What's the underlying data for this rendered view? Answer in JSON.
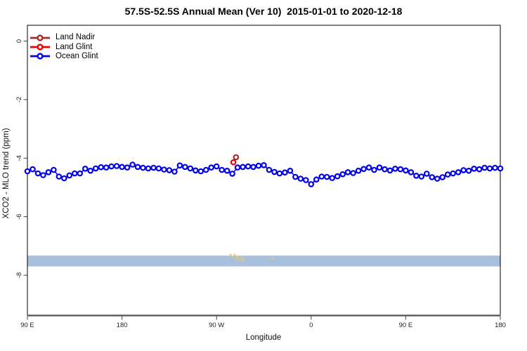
{
  "title": "57.5S-52.5S Annual Mean (Ver 10)  2015-01-01 to 2020-12-18",
  "axes": {
    "xlabel": "Longitude",
    "ylabel": "XCO2 - MLO trend (ppm)"
  },
  "legend": {
    "items": [
      {
        "label": "Land Nadir",
        "color": "#A52A2A"
      },
      {
        "label": "Land Glint",
        "color": "#EE0000"
      },
      {
        "label": "Ocean Glint",
        "color": "#0000EE"
      }
    ]
  },
  "colors": {
    "band": "#A9C0DD",
    "extra_marks": "#F2CB5E",
    "axis_line": "#595959",
    "box": "#000000",
    "tick_text": "#222222"
  },
  "chart_data": {
    "type": "line",
    "title": "57.5S-52.5S Annual Mean (Ver 10)  2015-01-01 to 2020-12-18",
    "xlabel": "Longitude",
    "ylabel": "XCO2 - MLO trend (ppm)",
    "xlim": [
      90,
      540
    ],
    "ylim": [
      -9.39,
      0.54
    ],
    "x_axis_note": "longitude axis wraps eastward: 90E, 180, 90W, 0, 90E, 180",
    "x_ticks": [
      {
        "x": 90,
        "label": "90 E"
      },
      {
        "x": 180,
        "label": "180"
      },
      {
        "x": 270,
        "label": "90 W"
      },
      {
        "x": 360,
        "label": "0"
      },
      {
        "x": 450,
        "label": "90 E"
      },
      {
        "x": 540,
        "label": "180"
      }
    ],
    "y_ticks": [
      {
        "v": 0,
        "label": "0"
      },
      {
        "v": -2,
        "label": "-2"
      },
      {
        "v": -4,
        "label": "-4"
      },
      {
        "v": -6,
        "label": "-6"
      },
      {
        "v": -8,
        "label": "-8"
      }
    ],
    "band": {
      "v_from": -7.33,
      "v_to": -7.7,
      "color": "#A9C0DD"
    },
    "series": [
      {
        "name": "Ocean Glint",
        "color": "#0000EE",
        "marker": "open-circle",
        "x_start": 90,
        "x_step": 5,
        "values": [
          -4.45,
          -4.38,
          -4.52,
          -4.58,
          -4.48,
          -4.4,
          -4.63,
          -4.69,
          -4.59,
          -4.52,
          -4.52,
          -4.36,
          -4.43,
          -4.35,
          -4.31,
          -4.32,
          -4.28,
          -4.27,
          -4.3,
          -4.32,
          -4.22,
          -4.3,
          -4.33,
          -4.35,
          -4.33,
          -4.35,
          -4.39,
          -4.41,
          -4.46,
          -4.25,
          -4.3,
          -4.35,
          -4.42,
          -4.45,
          -4.4,
          -4.32,
          -4.28,
          -4.4,
          -4.43,
          -4.53,
          -4.32,
          -4.3,
          -4.28,
          -4.3,
          -4.26,
          -4.24,
          -4.4,
          -4.47,
          -4.52,
          -4.49,
          -4.43,
          -4.64,
          -4.7,
          -4.75,
          -4.89,
          -4.73,
          -4.63,
          -4.64,
          -4.68,
          -4.62,
          -4.55,
          -4.48,
          -4.51,
          -4.43,
          -4.37,
          -4.32,
          -4.4,
          -4.32,
          -4.38,
          -4.42,
          -4.36,
          -4.38,
          -4.42,
          -4.48,
          -4.6,
          -4.63,
          -4.53,
          -4.65,
          -4.7,
          -4.65,
          -4.56,
          -4.52,
          -4.48,
          -4.41,
          -4.43,
          -4.36,
          -4.38,
          -4.33,
          -4.35,
          -4.33,
          -4.35
        ]
      },
      {
        "name": "Land Glint",
        "color": "#EE0000",
        "marker": "open-circle",
        "points": [
          {
            "x": 286.0,
            "y": -4.14
          }
        ]
      },
      {
        "name": "Land Nadir",
        "color": "#A52A2A",
        "marker": "open-circle",
        "points": [
          {
            "x": 288.5,
            "y": -3.97
          }
        ]
      }
    ],
    "extra_marks": {
      "color": "#F2CB5E",
      "shape": "small-square",
      "points": [
        {
          "x": 283.3,
          "y": -7.3
        },
        {
          "x": 285.3,
          "y": -7.36
        },
        {
          "x": 287.3,
          "y": -7.3
        },
        {
          "x": 288.6,
          "y": -7.43
        },
        {
          "x": 290.0,
          "y": -7.36
        },
        {
          "x": 292.0,
          "y": -7.47
        },
        {
          "x": 294.0,
          "y": -7.4
        },
        {
          "x": 296.0,
          "y": -7.48
        },
        {
          "x": 322.7,
          "y": -7.43
        }
      ]
    },
    "legend_position": "top-left-inside"
  }
}
